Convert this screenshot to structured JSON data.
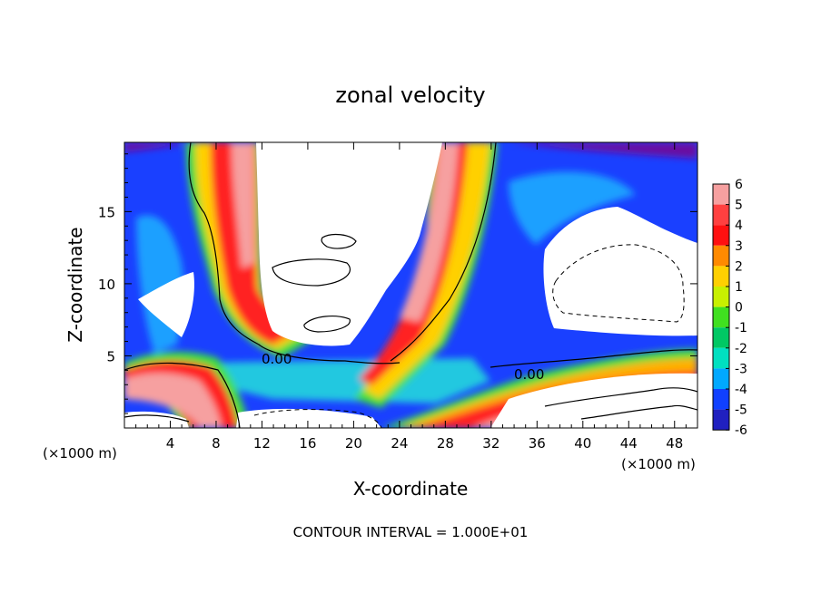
{
  "chart_data": {
    "type": "heatmap",
    "title": "zonal velocity",
    "xlabel": "X-coordinate",
    "ylabel": "Z-coordinate",
    "x_unit_left": "(×1000 m)",
    "x_unit_right": "(×1000 m)",
    "xlim": [
      0,
      50
    ],
    "ylim": [
      0,
      19.8
    ],
    "x_ticks": [
      4,
      8,
      12,
      16,
      20,
      24,
      28,
      32,
      36,
      40,
      44,
      48
    ],
    "y_ticks": [
      5,
      10,
      15
    ],
    "contour_label": "0.00",
    "footer": "CONTOUR INTERVAL = 1.000E+01",
    "colorbar": {
      "levels": [
        6,
        5,
        4,
        3,
        2,
        1,
        0,
        -1,
        -2,
        -3,
        -4,
        -5,
        -6
      ],
      "colors": [
        "#f6a0a0",
        "#ff4040",
        "#ff1010",
        "#ff8a00",
        "#ffd000",
        "#c8f000",
        "#40e020",
        "#00c864",
        "#00e0c0",
        "#00a8ff",
        "#1040ff",
        "#2020c0",
        "#6a10a0"
      ]
    }
  }
}
